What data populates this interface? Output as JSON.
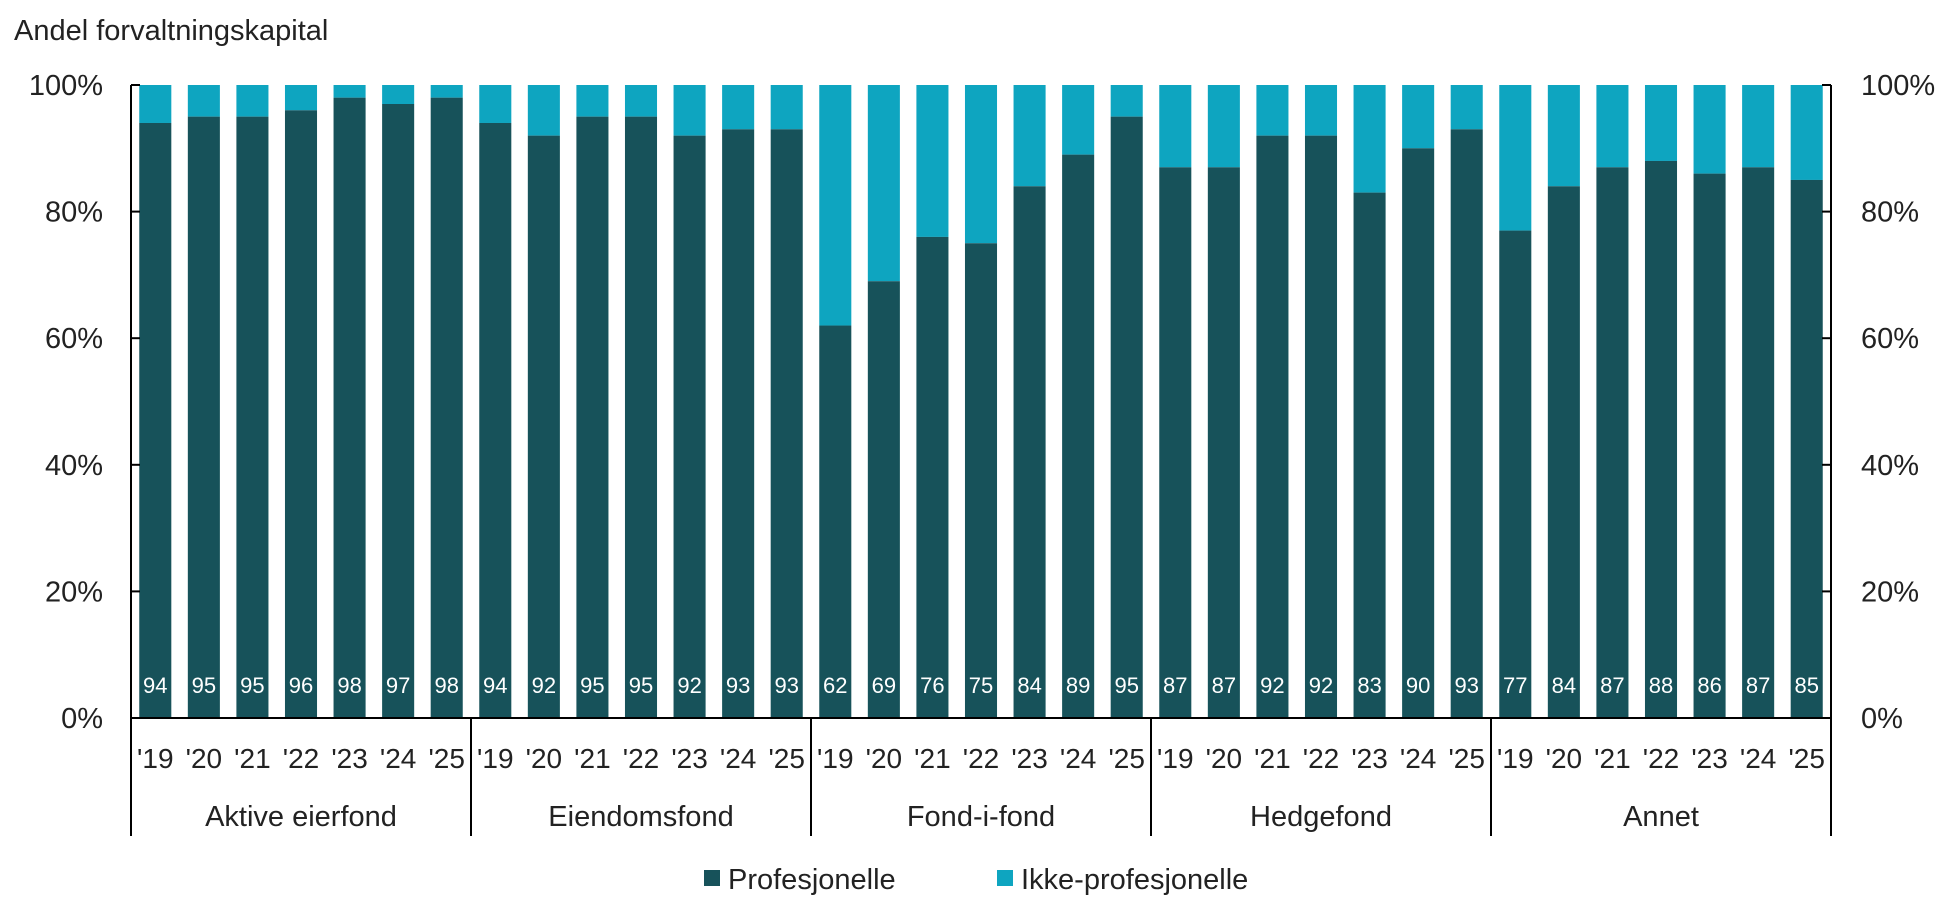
{
  "chart_data": {
    "type": "bar",
    "stacked": true,
    "title": "",
    "ylabel": "Andel forvaltningskapital",
    "ylim": [
      0,
      100
    ],
    "yticks": [
      "0%",
      "20%",
      "40%",
      "60%",
      "80%",
      "100%"
    ],
    "secondary_axis": true,
    "years": [
      "'19",
      "'20",
      "'21",
      "'22",
      "'23",
      "'24",
      "'25"
    ],
    "groups": [
      {
        "name": "Aktive eierfond",
        "values": [
          94,
          95,
          95,
          96,
          98,
          97,
          98
        ]
      },
      {
        "name": "Eiendomsfond",
        "values": [
          94,
          92,
          95,
          95,
          92,
          93,
          93
        ]
      },
      {
        "name": "Fond-i-fond",
        "values": [
          62,
          69,
          76,
          75,
          84,
          89,
          95
        ]
      },
      {
        "name": "Hedgefond",
        "values": [
          87,
          87,
          92,
          92,
          83,
          90,
          93
        ]
      },
      {
        "name": "Annet",
        "values": [
          77,
          84,
          87,
          88,
          86,
          87,
          85
        ]
      }
    ],
    "series": [
      {
        "name": "Profesjonelle",
        "color": "#17525a"
      },
      {
        "name": "Ikke-profesjonelle",
        "color": "#0ea5c0"
      }
    ],
    "legend_position": "bottom-center",
    "grid": false
  }
}
